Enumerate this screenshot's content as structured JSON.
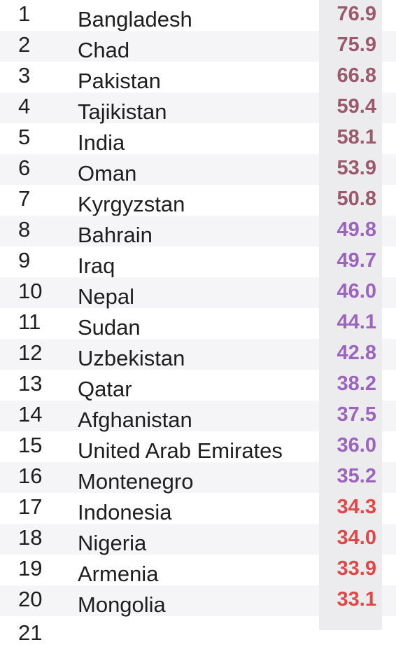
{
  "chart_data": {
    "type": "table",
    "rows": [
      {
        "rank": "1",
        "country": "Bangladesh",
        "value": 76.9,
        "display": "76.9",
        "color": "#9b5a6c"
      },
      {
        "rank": "2",
        "country": "Chad",
        "value": 75.9,
        "display": "75.9",
        "color": "#9b5a6c"
      },
      {
        "rank": "3",
        "country": "Pakistan",
        "value": 66.8,
        "display": "66.8",
        "color": "#9b5a6c"
      },
      {
        "rank": "4",
        "country": "Tajikistan",
        "value": 59.4,
        "display": "59.4",
        "color": "#9b5a6c"
      },
      {
        "rank": "5",
        "country": "India",
        "value": 58.1,
        "display": "58.1",
        "color": "#9b5a6c"
      },
      {
        "rank": "6",
        "country": "Oman",
        "value": 53.9,
        "display": "53.9",
        "color": "#9b5a6c"
      },
      {
        "rank": "7",
        "country": "Kyrgyzstan",
        "value": 50.8,
        "display": "50.8",
        "color": "#9b5a6c"
      },
      {
        "rank": "8",
        "country": "Bahrain",
        "value": 49.8,
        "display": "49.8",
        "color": "#9b64bd"
      },
      {
        "rank": "9",
        "country": "Iraq",
        "value": 49.7,
        "display": "49.7",
        "color": "#9b64bd"
      },
      {
        "rank": "10",
        "country": "Nepal",
        "value": 46.0,
        "display": "46.0",
        "color": "#9b64bd"
      },
      {
        "rank": "11",
        "country": "Sudan",
        "value": 44.1,
        "display": "44.1",
        "color": "#9b64bd"
      },
      {
        "rank": "12",
        "country": "Uzbekistan",
        "value": 42.8,
        "display": "42.8",
        "color": "#9b64bd"
      },
      {
        "rank": "13",
        "country": "Qatar",
        "value": 38.2,
        "display": "38.2",
        "color": "#9b64bd"
      },
      {
        "rank": "14",
        "country": "Afghanistan",
        "value": 37.5,
        "display": "37.5",
        "color": "#9b64bd"
      },
      {
        "rank": "15",
        "country": "United Arab Emirates",
        "value": 36.0,
        "display": "36.0",
        "color": "#9b64bd"
      },
      {
        "rank": "16",
        "country": "Montenegro",
        "value": 35.2,
        "display": "35.2",
        "color": "#9b64bd"
      },
      {
        "rank": "17",
        "country": "Indonesia",
        "value": 34.3,
        "display": "34.3",
        "color": "#e04848"
      },
      {
        "rank": "18",
        "country": "Nigeria",
        "value": 34.0,
        "display": "34.0",
        "color": "#e04848"
      },
      {
        "rank": "19",
        "country": "Armenia",
        "value": 33.9,
        "display": "33.9",
        "color": "#e04848"
      },
      {
        "rank": "20",
        "country": "Mongolia",
        "value": 33.1,
        "display": "33.1",
        "color": "#e04848"
      }
    ],
    "next_rank_partial": "21"
  }
}
